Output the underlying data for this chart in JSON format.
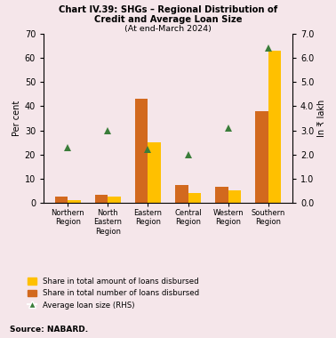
{
  "title_line1": "Chart IV.39: SHGs – Regional Distribution of",
  "title_line2": "Credit and Average Loan Size",
  "title_line3": "(At end-March 2024)",
  "categories": [
    "Northern\nRegion",
    "North\nEastern\nRegion",
    "Eastern\nRegion",
    "Central\nRegion",
    "Western\nRegion",
    "Southern\nRegion"
  ],
  "share_amount": [
    1.0,
    2.5,
    25.0,
    4.0,
    5.0,
    63.0
  ],
  "share_number": [
    2.5,
    3.5,
    43.0,
    7.5,
    6.5,
    38.0
  ],
  "avg_loan_size": [
    2.3,
    3.0,
    2.2,
    2.0,
    3.1,
    6.4
  ],
  "bar_color_amount": "#FFC000",
  "bar_color_number": "#D2691E",
  "marker_color": "#3A7D3A",
  "ylim_left": [
    0,
    70
  ],
  "ylim_right": [
    0.0,
    7.0
  ],
  "yticks_left": [
    0,
    10,
    20,
    30,
    40,
    50,
    60,
    70
  ],
  "yticks_right": [
    0.0,
    1.0,
    2.0,
    3.0,
    4.0,
    5.0,
    6.0,
    7.0
  ],
  "ylabel_left": "Per cent",
  "ylabel_right": "In ₹ lakh",
  "legend_labels": [
    "Share in total amount of loans disbursed",
    "Share in total number of loans disbursed",
    "Average loan size (RHS)"
  ],
  "source": "Source: NABARD.",
  "background_color": "#F5E6EA",
  "bar_width": 0.32
}
